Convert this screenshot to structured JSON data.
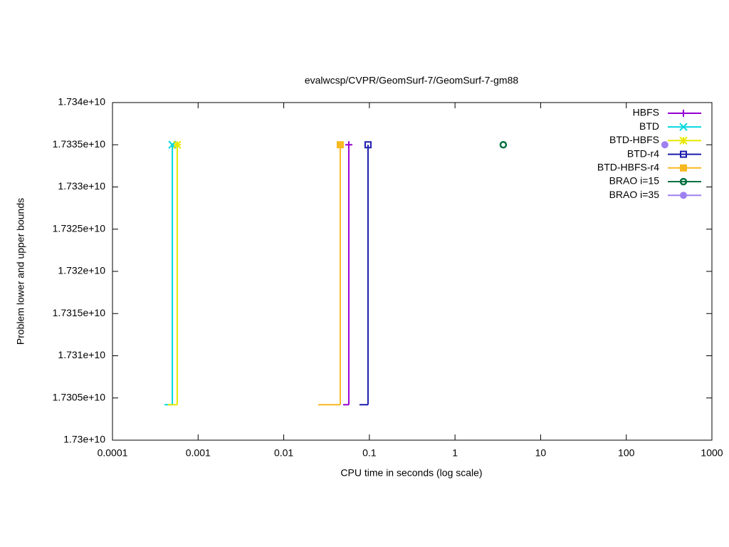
{
  "chart_data": {
    "type": "step",
    "title": "evalwcsp/CVPR/GeomSurf-7/GeomSurf-7-gm88",
    "x_label": "CPU time in seconds (log scale)",
    "y_label": "Problem lower and upper bounds",
    "xscale": "log",
    "xlim": [
      0.0001,
      1000
    ],
    "xticks": [
      0.0001,
      0.001,
      0.01,
      0.1,
      1,
      10,
      100,
      1000
    ],
    "ylim": [
      17300000000,
      17340000000
    ],
    "yticks": [
      {
        "value": 17300000000,
        "label": "1.73e+10"
      },
      {
        "value": 17305000000,
        "label": "1.7305e+10"
      },
      {
        "value": 17310000000,
        "label": "1.731e+10"
      },
      {
        "value": 17315000000,
        "label": "1.7315e+10"
      },
      {
        "value": 17320000000,
        "label": "1.732e+10"
      },
      {
        "value": 17325000000,
        "label": "1.7325e+10"
      },
      {
        "value": 17330000000,
        "label": "1.733e+10"
      },
      {
        "value": 17335000000,
        "label": "1.7335e+10"
      },
      {
        "value": 17340000000,
        "label": "1.734e+10"
      }
    ],
    "legend": "top-right",
    "series": [
      {
        "name": "HBFS",
        "color": "#9400d3",
        "marker": "plus",
        "x": [
          0.0493,
          0.0575
        ],
        "values": [
          17304200000,
          17335000000
        ]
      },
      {
        "name": "BTD",
        "color": "#00d8e0",
        "marker": "cross",
        "x": [
          0.000405,
          0.0005
        ],
        "values": [
          17304200000,
          17335000000
        ]
      },
      {
        "name": "BTD-HBFS",
        "color": "#e8e800",
        "marker": "star",
        "x": [
          0.000445,
          0.00057
        ],
        "values": [
          17304200000,
          17335000000
        ]
      },
      {
        "name": "BTD-r4",
        "color": "#1c1cae",
        "marker": "square",
        "x": [
          0.0766,
          0.0964
        ],
        "values": [
          17304200000,
          17335000000
        ]
      },
      {
        "name": "BTD-HBFS-r4",
        "color": "#f8b820",
        "marker": "filled-square",
        "x": [
          0.0253,
          0.0457
        ],
        "values": [
          17304200000,
          17335000000
        ]
      },
      {
        "name": "BRAO i=15",
        "color": "#007040",
        "marker": "ring",
        "x": [
          3.66
        ],
        "values": [
          17335000000
        ]
      },
      {
        "name": "BRAO i=35",
        "color": "#9f80f0",
        "marker": "dot",
        "x": [
          282
        ],
        "values": [
          17335000000
        ]
      }
    ]
  }
}
